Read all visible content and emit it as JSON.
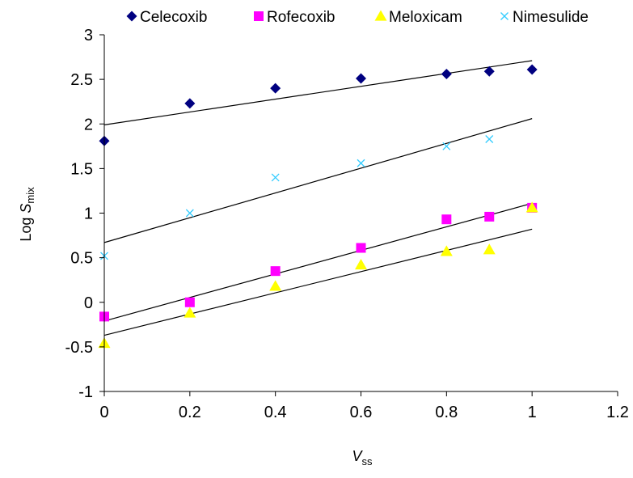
{
  "chart_data": {
    "type": "scatter",
    "title": "",
    "xlabel_main": "V",
    "xlabel_sub": "ss",
    "ylabel_main": "Log ",
    "ylabel_italic": "S",
    "ylabel_sub": "mix",
    "xlim": [
      0,
      1.2
    ],
    "ylim": [
      -1,
      3
    ],
    "xticks": [
      0,
      0.2,
      0.4,
      0.6,
      0.8,
      1,
      1.2
    ],
    "xtick_labels": [
      "0",
      "0.2",
      "0.4",
      "0.6",
      "0.8",
      "1",
      "1.2"
    ],
    "yticks": [
      -1,
      -0.5,
      0,
      0.5,
      1,
      1.5,
      2,
      2.5,
      3
    ],
    "ytick_labels": [
      "-1",
      "-0.5",
      "0",
      "0.5",
      "1",
      "1.5",
      "2",
      "2.5",
      "3"
    ],
    "grid": false,
    "legend_position": "top",
    "series": [
      {
        "name": "Celecoxib",
        "marker": "diamond",
        "color": "#000080",
        "points": [
          [
            0,
            1.81
          ],
          [
            0.2,
            2.23
          ],
          [
            0.4,
            2.4
          ],
          [
            0.6,
            2.51
          ],
          [
            0.8,
            2.56
          ],
          [
            0.9,
            2.59
          ],
          [
            1,
            2.61
          ]
        ],
        "trendline": [
          [
            0,
            1.99
          ],
          [
            1,
            2.71
          ]
        ]
      },
      {
        "name": "Rofecoxib",
        "marker": "square",
        "color": "#ff00ff",
        "points": [
          [
            0,
            -0.16
          ],
          [
            0.2,
            0.0
          ],
          [
            0.4,
            0.35
          ],
          [
            0.6,
            0.61
          ],
          [
            0.8,
            0.93
          ],
          [
            0.9,
            0.96
          ],
          [
            1,
            1.06
          ]
        ],
        "trendline": [
          [
            0,
            -0.21
          ],
          [
            1,
            1.11
          ]
        ]
      },
      {
        "name": "Meloxicam",
        "marker": "triangle",
        "color": "#ffff00",
        "points": [
          [
            0,
            -0.46
          ],
          [
            0.2,
            -0.12
          ],
          [
            0.4,
            0.18
          ],
          [
            0.6,
            0.42
          ],
          [
            0.8,
            0.57
          ],
          [
            0.9,
            0.59
          ],
          [
            1,
            1.06
          ]
        ],
        "trendline": [
          [
            0,
            -0.37
          ],
          [
            1,
            0.82
          ]
        ]
      },
      {
        "name": "Nimesulide",
        "marker": "x",
        "color": "#33ccff",
        "points": [
          [
            0,
            0.52
          ],
          [
            0.2,
            1.0
          ],
          [
            0.4,
            1.4
          ],
          [
            0.6,
            1.56
          ],
          [
            0.8,
            1.75
          ],
          [
            0.9,
            1.83
          ]
        ],
        "trendline": [
          [
            0,
            0.67
          ],
          [
            1,
            2.06
          ]
        ]
      }
    ]
  }
}
